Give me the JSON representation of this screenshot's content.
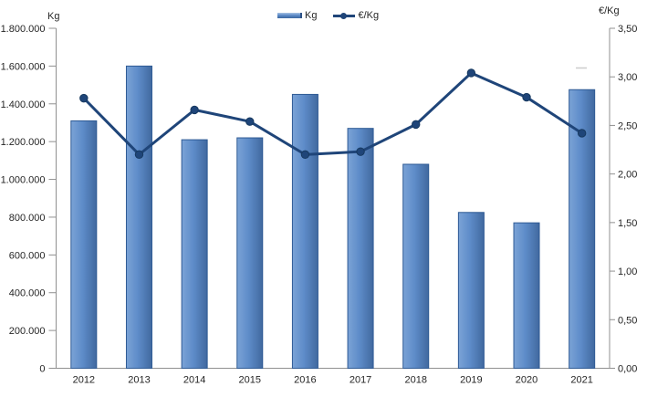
{
  "chart_data": {
    "type": "bar+line combo",
    "categories": [
      "2012",
      "2013",
      "2014",
      "2015",
      "2016",
      "2017",
      "2018",
      "2019",
      "2020",
      "2021"
    ],
    "series": [
      {
        "name": "Kg",
        "type": "bar",
        "axis": "left",
        "values": [
          1310000,
          1600000,
          1210000,
          1220000,
          1450000,
          1270000,
          1080000,
          825000,
          770000,
          1475000
        ]
      },
      {
        "name": "€/Kg",
        "type": "line",
        "axis": "right",
        "values": [
          2.78,
          2.2,
          2.66,
          2.54,
          2.2,
          2.23,
          2.51,
          3.04,
          2.79,
          2.42
        ]
      }
    ],
    "left_axis": {
      "title": "Kg",
      "min": 0,
      "max": 1800000,
      "step": 200000,
      "tick_labels": [
        "0",
        "200.000",
        "400.000",
        "600.000",
        "800.000",
        "1.000.000",
        "1.200.000",
        "1.400.000",
        "1.600.000",
        "1.800.000"
      ]
    },
    "right_axis": {
      "title": "€/Kg",
      "min": 0,
      "max": 3.5,
      "step": 0.5,
      "tick_labels": [
        "0,00",
        "0,50",
        "1,00",
        "1,50",
        "2,00",
        "2,50",
        "3,00",
        "3,50"
      ]
    },
    "legend_position": "top-center",
    "grid": false,
    "colors": {
      "bar_fill": "#5e8cc9",
      "bar_fill_light": "#7ba3d6",
      "bar_fill_dark": "#41699f",
      "bar_border": "#2e5a94",
      "line": "#1f4579",
      "marker": "#1f4579",
      "axis_line": "#909090",
      "tick_text": "#262626",
      "artifact": "#cccccc"
    }
  }
}
